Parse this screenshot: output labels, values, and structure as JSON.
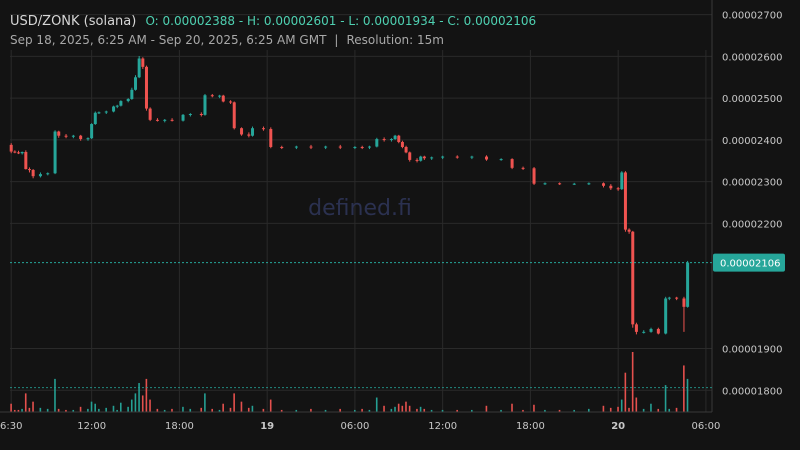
{
  "header": {
    "pair": "USD/ZONK (solana)",
    "ohlc": "O: 0.00002388 - H: 0.00002601 - L: 0.00001934 - C: 0.00002106",
    "range": "Sep 18, 2025, 6:25 AM - Sep 20, 2025, 6:25 AM GMT",
    "separator": "|",
    "resolution": "Resolution: 15m"
  },
  "watermark": "defined.fi",
  "colors": {
    "background": "#131313",
    "up": "#26a69a",
    "down": "#ef5350",
    "grid": "#2a2a2a",
    "text": "#b8b8b8",
    "price_label_bg": "#26a69a"
  },
  "chart_data": {
    "type": "candlestick",
    "y_ticks": [
      "0.00002700",
      "0.00002600",
      "0.00002500",
      "0.00002400",
      "0.00002300",
      "0.00002200",
      "0.00001900",
      "0.00001800"
    ],
    "ylim": [
      1.748e-05,
      2.716e-05
    ],
    "x_ticks": [
      {
        "label": "6:30",
        "t": 0.083
      },
      {
        "label": "12:00",
        "t": 5.583
      },
      {
        "label": "18:00",
        "t": 11.583
      },
      {
        "label": "19",
        "t": 17.583,
        "bold": true
      },
      {
        "label": "06:00",
        "t": 23.583
      },
      {
        "label": "12:00",
        "t": 29.583
      },
      {
        "label": "18:00",
        "t": 35.583
      },
      {
        "label": "20",
        "t": 41.583,
        "bold": true
      },
      {
        "label": "06:00",
        "t": 47.583
      }
    ],
    "x_range_hours": [
      0,
      48
    ],
    "last_price": "0.00002106",
    "last_price_value": 2.106e-05,
    "volume_marker_value": 1.816e-05,
    "series": [
      {
        "t": 0.0,
        "o": 2.388e-05,
        "h": 2.392e-05,
        "l": 2.368e-05,
        "c": 2.372e-05,
        "v": 8
      },
      {
        "t": 0.25,
        "o": 2.372e-05,
        "h": 2.375e-05,
        "l": 2.368e-05,
        "c": 2.37e-05,
        "v": 2
      },
      {
        "t": 0.5,
        "o": 2.37e-05,
        "h": 2.374e-05,
        "l": 2.366e-05,
        "c": 2.368e-05,
        "v": 2
      },
      {
        "t": 0.75,
        "o": 2.368e-05,
        "h": 2.372e-05,
        "l": 2.365e-05,
        "c": 2.371e-05,
        "v": 3
      },
      {
        "t": 1.0,
        "o": 2.371e-05,
        "h": 2.375e-05,
        "l": 2.329e-05,
        "c": 2.33e-05,
        "v": 18
      },
      {
        "t": 1.25,
        "o": 2.33e-05,
        "h": 2.334e-05,
        "l": 2.322e-05,
        "c": 2.328e-05,
        "v": 4
      },
      {
        "t": 1.5,
        "o": 2.328e-05,
        "h": 2.33e-05,
        "l": 2.308e-05,
        "c": 2.313e-05,
        "v": 10
      },
      {
        "t": 2.0,
        "o": 2.313e-05,
        "h": 2.322e-05,
        "l": 2.31e-05,
        "c": 2.318e-05,
        "v": 4
      },
      {
        "t": 2.5,
        "o": 2.318e-05,
        "h": 2.322e-05,
        "l": 2.315e-05,
        "c": 2.32e-05,
        "v": 3
      },
      {
        "t": 3.0,
        "o": 2.32e-05,
        "h": 2.423e-05,
        "l": 2.318e-05,
        "c": 2.42e-05,
        "v": 32
      },
      {
        "t": 3.25,
        "o": 2.42e-05,
        "h": 2.422e-05,
        "l": 2.405e-05,
        "c": 2.41e-05,
        "v": 3
      },
      {
        "t": 3.75,
        "o": 2.41e-05,
        "h": 2.414e-05,
        "l": 2.404e-05,
        "c": 2.408e-05,
        "v": 2
      },
      {
        "t": 4.25,
        "o": 2.408e-05,
        "h": 2.412e-05,
        "l": 2.404e-05,
        "c": 2.41e-05,
        "v": 2
      },
      {
        "t": 4.75,
        "o": 2.41e-05,
        "h": 2.412e-05,
        "l": 2.398e-05,
        "c": 2.402e-05,
        "v": 5
      },
      {
        "t": 5.25,
        "o": 2.402e-05,
        "h": 2.406e-05,
        "l": 2.398e-05,
        "c": 2.404e-05,
        "v": 3
      },
      {
        "t": 5.5,
        "o": 2.404e-05,
        "h": 2.44e-05,
        "l": 2.402e-05,
        "c": 2.438e-05,
        "v": 10
      },
      {
        "t": 5.75,
        "o": 2.438e-05,
        "h": 2.468e-05,
        "l": 2.436e-05,
        "c": 2.465e-05,
        "v": 8
      },
      {
        "t": 6.0,
        "o": 2.465e-05,
        "h": 2.468e-05,
        "l": 2.462e-05,
        "c": 2.466e-05,
        "v": 3
      },
      {
        "t": 6.5,
        "o": 2.466e-05,
        "h": 2.47e-05,
        "l": 2.462e-05,
        "c": 2.468e-05,
        "v": 4
      },
      {
        "t": 7.0,
        "o": 2.468e-05,
        "h": 2.482e-05,
        "l": 2.466e-05,
        "c": 2.48e-05,
        "v": 6
      },
      {
        "t": 7.25,
        "o": 2.48e-05,
        "h": 2.484e-05,
        "l": 2.476e-05,
        "c": 2.482e-05,
        "v": 2
      },
      {
        "t": 7.5,
        "o": 2.482e-05,
        "h": 2.495e-05,
        "l": 2.48e-05,
        "c": 2.493e-05,
        "v": 9
      },
      {
        "t": 8.0,
        "o": 2.493e-05,
        "h": 2.5e-05,
        "l": 2.49e-05,
        "c": 2.498e-05,
        "v": 5
      },
      {
        "t": 8.25,
        "o": 2.498e-05,
        "h": 2.525e-05,
        "l": 2.496e-05,
        "c": 2.52e-05,
        "v": 12
      },
      {
        "t": 8.5,
        "o": 2.52e-05,
        "h": 2.555e-05,
        "l": 2.518e-05,
        "c": 2.55e-05,
        "v": 18
      },
      {
        "t": 8.75,
        "o": 2.55e-05,
        "h": 2.601e-05,
        "l": 2.548e-05,
        "c": 2.595e-05,
        "v": 28
      },
      {
        "t": 9.0,
        "o": 2.595e-05,
        "h": 2.598e-05,
        "l": 2.57e-05,
        "c": 2.575e-05,
        "v": 16
      },
      {
        "t": 9.25,
        "o": 2.575e-05,
        "h": 2.578e-05,
        "l": 2.47e-05,
        "c": 2.475e-05,
        "v": 32
      },
      {
        "t": 9.5,
        "o": 2.475e-05,
        "h": 2.478e-05,
        "l": 2.445e-05,
        "c": 2.448e-05,
        "v": 12
      },
      {
        "t": 10.0,
        "o": 2.448e-05,
        "h": 2.452e-05,
        "l": 2.444e-05,
        "c": 2.446e-05,
        "v": 3
      },
      {
        "t": 10.5,
        "o": 2.446e-05,
        "h": 2.45e-05,
        "l": 2.442e-05,
        "c": 2.448e-05,
        "v": 2
      },
      {
        "t": 11.0,
        "o": 2.448e-05,
        "h": 2.452e-05,
        "l": 2.444e-05,
        "c": 2.446e-05,
        "v": 3
      },
      {
        "t": 11.75,
        "o": 2.446e-05,
        "h": 2.462e-05,
        "l": 2.444e-05,
        "c": 2.46e-05,
        "v": 5
      },
      {
        "t": 12.25,
        "o": 2.46e-05,
        "h": 2.464e-05,
        "l": 2.456e-05,
        "c": 2.462e-05,
        "v": 3
      },
      {
        "t": 13.0,
        "o": 2.462e-05,
        "h": 2.466e-05,
        "l": 2.456e-05,
        "c": 2.46e-05,
        "v": 4
      },
      {
        "t": 13.25,
        "o": 2.46e-05,
        "h": 2.51e-05,
        "l": 2.458e-05,
        "c": 2.507e-05,
        "v": 18
      },
      {
        "t": 13.75,
        "o": 2.507e-05,
        "h": 2.51e-05,
        "l": 2.502e-05,
        "c": 2.505e-05,
        "v": 3
      },
      {
        "t": 14.25,
        "o": 2.505e-05,
        "h": 2.508e-05,
        "l": 2.5e-05,
        "c": 2.506e-05,
        "v": 2
      },
      {
        "t": 14.5,
        "o": 2.506e-05,
        "h": 2.508e-05,
        "l": 2.49e-05,
        "c": 2.492e-05,
        "v": 8
      },
      {
        "t": 15.0,
        "o": 2.492e-05,
        "h": 2.495e-05,
        "l": 2.486e-05,
        "c": 2.49e-05,
        "v": 4
      },
      {
        "t": 15.25,
        "o": 2.49e-05,
        "h": 2.492e-05,
        "l": 2.425e-05,
        "c": 2.428e-05,
        "v": 18
      },
      {
        "t": 15.75,
        "o": 2.428e-05,
        "h": 2.43e-05,
        "l": 2.41e-05,
        "c": 2.413e-05,
        "v": 10
      },
      {
        "t": 16.25,
        "o": 2.413e-05,
        "h": 2.418e-05,
        "l": 2.406e-05,
        "c": 2.41e-05,
        "v": 4
      },
      {
        "t": 16.5,
        "o": 2.41e-05,
        "h": 2.432e-05,
        "l": 2.408e-05,
        "c": 2.428e-05,
        "v": 6
      },
      {
        "t": 17.25,
        "o": 2.428e-05,
        "h": 2.432e-05,
        "l": 2.422e-05,
        "c": 2.426e-05,
        "v": 3
      },
      {
        "t": 17.75,
        "o": 2.426e-05,
        "h": 2.43e-05,
        "l": 2.38e-05,
        "c": 2.383e-05,
        "v": 12
      },
      {
        "t": 18.5,
        "o": 2.383e-05,
        "h": 2.386e-05,
        "l": 2.378e-05,
        "c": 2.382e-05,
        "v": 2
      },
      {
        "t": 19.5,
        "o": 2.382e-05,
        "h": 2.386e-05,
        "l": 2.378e-05,
        "c": 2.384e-05,
        "v": 2
      },
      {
        "t": 20.5,
        "o": 2.384e-05,
        "h": 2.388e-05,
        "l": 2.378e-05,
        "c": 2.382e-05,
        "v": 3
      },
      {
        "t": 21.5,
        "o": 2.382e-05,
        "h": 2.386e-05,
        "l": 2.378e-05,
        "c": 2.384e-05,
        "v": 2
      },
      {
        "t": 22.5,
        "o": 2.384e-05,
        "h": 2.388e-05,
        "l": 2.378e-05,
        "c": 2.382e-05,
        "v": 3
      },
      {
        "t": 23.5,
        "o": 2.382e-05,
        "h": 2.385e-05,
        "l": 2.378e-05,
        "c": 2.383e-05,
        "v": 2
      },
      {
        "t": 24.0,
        "o": 2.383e-05,
        "h": 2.386e-05,
        "l": 2.378e-05,
        "c": 2.382e-05,
        "v": 3
      },
      {
        "t": 24.5,
        "o": 2.382e-05,
        "h": 2.386e-05,
        "l": 2.378e-05,
        "c": 2.384e-05,
        "v": 2
      },
      {
        "t": 25.0,
        "o": 2.384e-05,
        "h": 2.405e-05,
        "l": 2.382e-05,
        "c": 2.402e-05,
        "v": 14
      },
      {
        "t": 25.5,
        "o": 2.402e-05,
        "h": 2.406e-05,
        "l": 2.396e-05,
        "c": 2.4e-05,
        "v": 6
      },
      {
        "t": 26.0,
        "o": 2.4e-05,
        "h": 2.404e-05,
        "l": 2.396e-05,
        "c": 2.402e-05,
        "v": 3
      },
      {
        "t": 26.25,
        "o": 2.402e-05,
        "h": 2.412e-05,
        "l": 2.4e-05,
        "c": 2.41e-05,
        "v": 5
      },
      {
        "t": 26.5,
        "o": 2.41e-05,
        "h": 2.412e-05,
        "l": 2.392e-05,
        "c": 2.395e-05,
        "v": 8
      },
      {
        "t": 26.75,
        "o": 2.395e-05,
        "h": 2.398e-05,
        "l": 2.38e-05,
        "c": 2.383e-05,
        "v": 6
      },
      {
        "t": 27.0,
        "o": 2.383e-05,
        "h": 2.386e-05,
        "l": 2.368e-05,
        "c": 2.37e-05,
        "v": 10
      },
      {
        "t": 27.25,
        "o": 2.37e-05,
        "h": 2.372e-05,
        "l": 2.348e-05,
        "c": 2.352e-05,
        "v": 6
      },
      {
        "t": 27.75,
        "o": 2.352e-05,
        "h": 2.356e-05,
        "l": 2.346e-05,
        "c": 2.35e-05,
        "v": 3
      },
      {
        "t": 28.0,
        "o": 2.35e-05,
        "h": 2.362e-05,
        "l": 2.348e-05,
        "c": 2.36e-05,
        "v": 5
      },
      {
        "t": 28.25,
        "o": 2.36e-05,
        "h": 2.362e-05,
        "l": 2.352e-05,
        "c": 2.356e-05,
        "v": 3
      },
      {
        "t": 28.75,
        "o": 2.356e-05,
        "h": 2.36e-05,
        "l": 2.352e-05,
        "c": 2.358e-05,
        "v": 2
      },
      {
        "t": 29.5,
        "o": 2.358e-05,
        "h": 2.362e-05,
        "l": 2.354e-05,
        "c": 2.36e-05,
        "v": 2
      },
      {
        "t": 30.5,
        "o": 2.36e-05,
        "h": 2.363e-05,
        "l": 2.355e-05,
        "c": 2.358e-05,
        "v": 2
      },
      {
        "t": 31.5,
        "o": 2.358e-05,
        "h": 2.362e-05,
        "l": 2.354e-05,
        "c": 2.36e-05,
        "v": 2
      },
      {
        "t": 32.5,
        "o": 2.36e-05,
        "h": 2.363e-05,
        "l": 2.35e-05,
        "c": 2.353e-05,
        "v": 6
      },
      {
        "t": 33.5,
        "o": 2.353e-05,
        "h": 2.356e-05,
        "l": 2.35e-05,
        "c": 2.354e-05,
        "v": 2
      },
      {
        "t": 34.25,
        "o": 2.354e-05,
        "h": 2.356e-05,
        "l": 2.33e-05,
        "c": 2.333e-05,
        "v": 8
      },
      {
        "t": 35.0,
        "o": 2.333e-05,
        "h": 2.336e-05,
        "l": 2.328e-05,
        "c": 2.332e-05,
        "v": 2
      },
      {
        "t": 35.75,
        "o": 2.332e-05,
        "h": 2.335e-05,
        "l": 2.292e-05,
        "c": 2.295e-05,
        "v": 7
      },
      {
        "t": 36.5,
        "o": 2.295e-05,
        "h": 2.298e-05,
        "l": 2.292e-05,
        "c": 2.296e-05,
        "v": 2
      },
      {
        "t": 37.5,
        "o": 2.296e-05,
        "h": 2.298e-05,
        "l": 2.292e-05,
        "c": 2.294e-05,
        "v": 2
      },
      {
        "t": 38.5,
        "o": 2.294e-05,
        "h": 2.297e-05,
        "l": 2.292e-05,
        "c": 2.295e-05,
        "v": 2
      },
      {
        "t": 39.5,
        "o": 2.295e-05,
        "h": 2.298e-05,
        "l": 2.292e-05,
        "c": 2.296e-05,
        "v": 3
      },
      {
        "t": 40.5,
        "o": 2.296e-05,
        "h": 2.298e-05,
        "l": 2.286e-05,
        "c": 2.29e-05,
        "v": 6
      },
      {
        "t": 41.0,
        "o": 2.29e-05,
        "h": 2.294e-05,
        "l": 2.28e-05,
        "c": 2.284e-05,
        "v": 4
      },
      {
        "t": 41.5,
        "o": 2.284e-05,
        "h": 2.287e-05,
        "l": 2.278e-05,
        "c": 2.282e-05,
        "v": 5
      },
      {
        "t": 41.75,
        "o": 2.282e-05,
        "h": 2.325e-05,
        "l": 2.28e-05,
        "c": 2.322e-05,
        "v": 12
      },
      {
        "t": 42.0,
        "o": 2.322e-05,
        "h": 2.325e-05,
        "l": 2.18e-05,
        "c": 2.185e-05,
        "v": 38
      },
      {
        "t": 42.25,
        "o": 2.185e-05,
        "h": 2.188e-05,
        "l": 2.175e-05,
        "c": 2.18e-05,
        "v": 4
      },
      {
        "t": 42.5,
        "o": 2.18e-05,
        "h": 2.182e-05,
        "l": 1.95e-05,
        "c": 1.958e-05,
        "v": 58
      },
      {
        "t": 42.75,
        "o": 1.958e-05,
        "h": 1.962e-05,
        "l": 1.934e-05,
        "c": 1.94e-05,
        "v": 14
      },
      {
        "t": 43.25,
        "o": 1.94e-05,
        "h": 1.944e-05,
        "l": 1.936e-05,
        "c": 1.94e-05,
        "v": 3
      },
      {
        "t": 43.75,
        "o": 1.94e-05,
        "h": 1.95e-05,
        "l": 1.938e-05,
        "c": 1.947e-05,
        "v": 8
      },
      {
        "t": 44.25,
        "o": 1.947e-05,
        "h": 1.95e-05,
        "l": 1.934e-05,
        "c": 1.936e-05,
        "v": 3
      },
      {
        "t": 44.75,
        "o": 1.936e-05,
        "h": 2.024e-05,
        "l": 1.934e-05,
        "c": 2.02e-05,
        "v": 26
      },
      {
        "t": 45.0,
        "o": 2.02e-05,
        "h": 2.024e-05,
        "l": 2.016e-05,
        "c": 2.022e-05,
        "v": 3
      },
      {
        "t": 45.5,
        "o": 2.022e-05,
        "h": 2.024e-05,
        "l": 2.016e-05,
        "c": 2.02e-05,
        "v": 4
      },
      {
        "t": 46.0,
        "o": 2.02e-05,
        "h": 2.024e-05,
        "l": 1.94e-05,
        "c": 2e-05,
        "v": 45
      },
      {
        "t": 46.25,
        "o": 2e-05,
        "h": 2.11e-05,
        "l": 1.998e-05,
        "c": 2.106e-05,
        "v": 32
      }
    ]
  }
}
